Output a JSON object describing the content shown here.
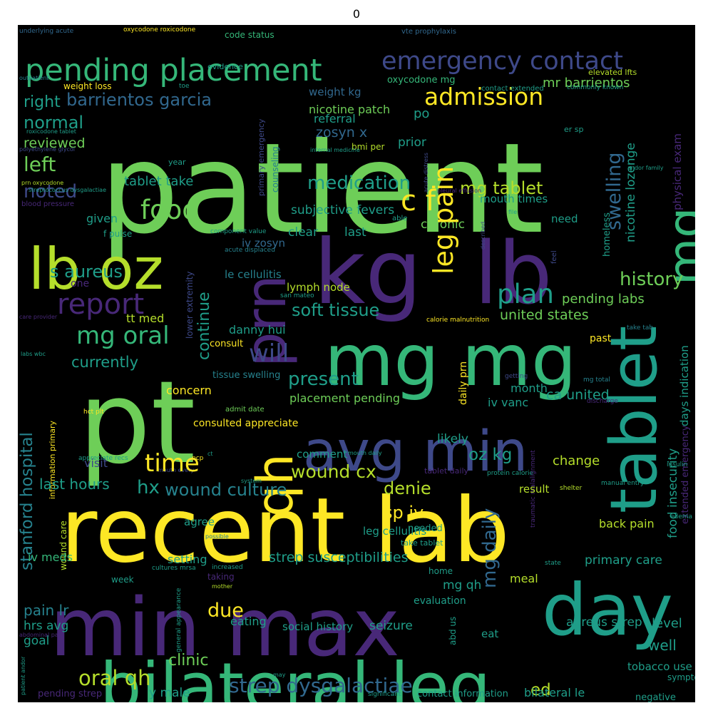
{
  "figure": {
    "title": "0",
    "background": "#000000"
  },
  "colors": {
    "yellow": "#fde725",
    "lime": "#b5de2b",
    "green": "#6ece58",
    "teal_green": "#35b779",
    "teal": "#1f9e89",
    "cyan_blue": "#26828e",
    "blue": "#31688e",
    "indigo": "#3e4989",
    "purple": "#482878"
  },
  "words": [
    {
      "text": "patient",
      "color": "green"
    },
    {
      "text": "pt",
      "color": "green"
    },
    {
      "text": "recent lab",
      "color": "yellow"
    },
    {
      "text": "min max",
      "color": "purple"
    },
    {
      "text": "kg",
      "color": "purple"
    },
    {
      "text": "lb",
      "color": "purple"
    },
    {
      "text": "bilateral leg",
      "color": "teal_green"
    },
    {
      "text": "mg mg",
      "color": "teal_green"
    },
    {
      "text": "day",
      "color": "teal"
    },
    {
      "text": "tablet",
      "color": "teal"
    },
    {
      "text": "lb oz",
      "color": "lime"
    },
    {
      "text": "avg min",
      "color": "indigo"
    },
    {
      "text": "qh",
      "color": "yellow"
    },
    {
      "text": "prn",
      "color": "purple"
    },
    {
      "text": "mg",
      "color": "teal_green"
    },
    {
      "text": "pending placement",
      "color": "teal_green"
    },
    {
      "text": "emergency contact",
      "color": "indigo"
    },
    {
      "text": "admission",
      "color": "yellow"
    },
    {
      "text": "barrientos garcia",
      "color": "blue"
    },
    {
      "text": "mr barrientos",
      "color": "green"
    },
    {
      "text": "weight kg",
      "color": "blue"
    },
    {
      "text": "nicotine patch",
      "color": "green"
    },
    {
      "text": "oxycodone mg",
      "color": "teal_green"
    },
    {
      "text": "code status",
      "color": "teal_green"
    },
    {
      "text": "oxycodone roxicodone",
      "color": "yellow"
    },
    {
      "text": "vte prophylaxis",
      "color": "blue"
    },
    {
      "text": "underlying acute",
      "color": "blue"
    },
    {
      "text": "evidence",
      "color": "teal"
    },
    {
      "text": "outpatient",
      "color": "cyan_blue"
    },
    {
      "text": "weight loss",
      "color": "yellow"
    },
    {
      "text": "toe",
      "color": "teal"
    },
    {
      "text": "elevated lfts",
      "color": "lime"
    },
    {
      "text": "commonly known",
      "color": "teal"
    },
    {
      "text": "contact extended",
      "color": "teal"
    },
    {
      "text": "physical exam",
      "color": "purple"
    },
    {
      "text": "right",
      "color": "teal"
    },
    {
      "text": "normal",
      "color": "teal"
    },
    {
      "text": "left",
      "color": "green"
    },
    {
      "text": "noted",
      "color": "indigo"
    },
    {
      "text": "reviewed",
      "color": "green"
    },
    {
      "text": "roxicodone tablet",
      "color": "teal"
    },
    {
      "text": "polyethylene glycol",
      "color": "indigo"
    },
    {
      "text": "prn oxycodone",
      "color": "lime"
    },
    {
      "text": "streptococcus dysgalactiae",
      "color": "teal"
    },
    {
      "text": "blood pressure",
      "color": "purple"
    },
    {
      "text": "referral",
      "color": "teal"
    },
    {
      "text": "zosyn x",
      "color": "blue"
    },
    {
      "text": "bmi per",
      "color": "lime"
    },
    {
      "text": "internal medicine",
      "color": "teal"
    },
    {
      "text": "prior",
      "color": "teal"
    },
    {
      "text": "po",
      "color": "teal"
    },
    {
      "text": "er sp",
      "color": "teal"
    },
    {
      "text": "year",
      "color": "teal"
    },
    {
      "text": "tablet take",
      "color": "teal"
    },
    {
      "text": "medication",
      "color": "teal"
    },
    {
      "text": "mg tablet",
      "color": "lime"
    },
    {
      "text": "c f",
      "color": "yellow"
    },
    {
      "text": "food",
      "color": "green"
    },
    {
      "text": "swelling",
      "color": "blue"
    },
    {
      "text": "nicotine lozenge",
      "color": "teal"
    },
    {
      "text": "andor family",
      "color": "teal"
    },
    {
      "text": "primary emergency",
      "color": "indigo"
    },
    {
      "text": "counseling",
      "color": "cyan_blue"
    },
    {
      "text": "acute distress",
      "color": "indigo"
    },
    {
      "text": "pleural effusion",
      "color": "purple"
    },
    {
      "text": "subjective fevers",
      "color": "teal"
    },
    {
      "text": "mouth times",
      "color": "teal"
    },
    {
      "text": "homeless",
      "color": "teal"
    },
    {
      "text": "need",
      "color": "teal"
    },
    {
      "text": "chronic",
      "color": "green"
    },
    {
      "text": "able",
      "color": "teal"
    },
    {
      "text": "file",
      "color": "teal"
    },
    {
      "text": "described",
      "color": "indigo"
    },
    {
      "text": "feel",
      "color": "indigo"
    },
    {
      "text": "clear",
      "color": "teal"
    },
    {
      "text": "last",
      "color": "teal"
    },
    {
      "text": "given",
      "color": "teal"
    },
    {
      "text": "f pulse",
      "color": "teal"
    },
    {
      "text": "component value",
      "color": "teal"
    },
    {
      "text": "acute displaced",
      "color": "cyan_blue"
    },
    {
      "text": "iv zosyn",
      "color": "blue"
    },
    {
      "text": "leg pain",
      "color": "yellow"
    },
    {
      "text": "s aureus",
      "color": "teal"
    },
    {
      "text": "one",
      "color": "purple"
    },
    {
      "text": "le cellulitis",
      "color": "cyan_blue"
    },
    {
      "text": "lower extremity",
      "color": "indigo"
    },
    {
      "text": "history",
      "color": "green"
    },
    {
      "text": "report",
      "color": "purple"
    },
    {
      "text": "plan",
      "color": "teal"
    },
    {
      "text": "pending labs",
      "color": "green"
    },
    {
      "text": "lymph node",
      "color": "lime"
    },
    {
      "text": "san mateo",
      "color": "teal"
    },
    {
      "text": "soft tissue",
      "color": "teal"
    },
    {
      "text": "united states",
      "color": "green"
    },
    {
      "text": "calorie malnutrition",
      "color": "yellow"
    },
    {
      "text": "take tab",
      "color": "cyan_blue"
    },
    {
      "text": "care provider",
      "color": "purple"
    },
    {
      "text": "labs wbc",
      "color": "teal"
    },
    {
      "text": "mg oral",
      "color": "teal_green"
    },
    {
      "text": "tt med",
      "color": "lime"
    },
    {
      "text": "continue",
      "color": "teal"
    },
    {
      "text": "danny hui",
      "color": "teal"
    },
    {
      "text": "will",
      "color": "indigo"
    },
    {
      "text": "past",
      "color": "yellow"
    },
    {
      "text": "consult",
      "color": "yellow"
    },
    {
      "text": "currently",
      "color": "teal"
    },
    {
      "text": "present",
      "color": "teal"
    },
    {
      "text": "tissue swelling",
      "color": "cyan_blue"
    },
    {
      "text": "mg total",
      "color": "cyan_blue"
    },
    {
      "text": "getting",
      "color": "indigo"
    },
    {
      "text": "days indication",
      "color": "teal"
    },
    {
      "text": "stanford hospital",
      "color": "cyan_blue"
    },
    {
      "text": "information primary",
      "color": "yellow"
    },
    {
      "text": "concern",
      "color": "yellow"
    },
    {
      "text": "admit date",
      "color": "green"
    },
    {
      "text": "hct plt",
      "color": "yellow"
    },
    {
      "text": "consulted appreciate",
      "color": "yellow"
    },
    {
      "text": "placement pending",
      "color": "green"
    },
    {
      "text": "daily prn",
      "color": "yellow"
    },
    {
      "text": "month",
      "color": "teal"
    },
    {
      "text": "ca united",
      "color": "teal"
    },
    {
      "text": "iv vanc",
      "color": "teal"
    },
    {
      "text": "discharge",
      "color": "purple"
    },
    {
      "text": "food insecurity",
      "color": "teal"
    },
    {
      "text": "extended emergency",
      "color": "purple"
    },
    {
      "text": "appreciate recs",
      "color": "teal"
    },
    {
      "text": "pcp",
      "color": "yellow"
    },
    {
      "text": "ct",
      "color": "teal"
    },
    {
      "text": "mouth every",
      "color": "indigo"
    },
    {
      "text": "likely",
      "color": "teal"
    },
    {
      "text": "oz kg",
      "color": "teal"
    },
    {
      "text": "comment",
      "color": "teal"
    },
    {
      "text": "mouth daily",
      "color": "teal"
    },
    {
      "text": "time",
      "color": "yellow"
    },
    {
      "text": "visit",
      "color": "indigo"
    },
    {
      "text": "change",
      "color": "lime"
    },
    {
      "text": "insulin",
      "color": "teal"
    },
    {
      "text": "shelter",
      "color": "lime"
    },
    {
      "text": "tablet daily",
      "color": "purple"
    },
    {
      "text": "protein calorie",
      "color": "teal"
    },
    {
      "text": "manual entry",
      "color": "teal"
    },
    {
      "text": "traumatic malalignment",
      "color": "purple"
    },
    {
      "text": "last hours",
      "color": "teal"
    },
    {
      "text": "hx",
      "color": "teal"
    },
    {
      "text": "wound cx",
      "color": "lime"
    },
    {
      "text": "wound culture",
      "color": "cyan_blue"
    },
    {
      "text": "denie",
      "color": "lime"
    },
    {
      "text": "result",
      "color": "lime"
    },
    {
      "text": "system",
      "color": "teal"
    },
    {
      "text": "edema",
      "color": "teal"
    },
    {
      "text": "mg daily",
      "color": "blue"
    },
    {
      "text": "sp iv",
      "color": "yellow"
    },
    {
      "text": "needed",
      "color": "teal"
    },
    {
      "text": "take tablet",
      "color": "teal"
    },
    {
      "text": "back pain",
      "color": "lime"
    },
    {
      "text": "agree",
      "color": "teal"
    },
    {
      "text": "possible",
      "color": "cyan_blue"
    },
    {
      "text": "leg cellulitis",
      "color": "teal"
    },
    {
      "text": "wound care",
      "color": "lime"
    },
    {
      "text": "iv meds",
      "color": "teal_green"
    },
    {
      "text": "setting",
      "color": "teal"
    },
    {
      "text": "strep susceptibilities",
      "color": "teal"
    },
    {
      "text": "primary care",
      "color": "teal"
    },
    {
      "text": "week",
      "color": "teal"
    },
    {
      "text": "cultures mrsa",
      "color": "teal"
    },
    {
      "text": "increased",
      "color": "teal"
    },
    {
      "text": "home",
      "color": "teal"
    },
    {
      "text": "meal",
      "color": "lime"
    },
    {
      "text": "state",
      "color": "teal"
    },
    {
      "text": "taking",
      "color": "purple"
    },
    {
      "text": "mother",
      "color": "lime"
    },
    {
      "text": "general appearance",
      "color": "teal"
    },
    {
      "text": "evaluation",
      "color": "teal"
    },
    {
      "text": "mg qh",
      "color": "teal"
    },
    {
      "text": "due",
      "color": "yellow"
    },
    {
      "text": "level",
      "color": "teal"
    },
    {
      "text": "abd us",
      "color": "teal"
    },
    {
      "text": "pain lr",
      "color": "cyan_blue"
    },
    {
      "text": "hrs avg",
      "color": "teal"
    },
    {
      "text": "goal",
      "color": "teal"
    },
    {
      "text": "eating",
      "color": "teal"
    },
    {
      "text": "social history",
      "color": "teal"
    },
    {
      "text": "seizure",
      "color": "teal"
    },
    {
      "text": "aureus strep",
      "color": "teal"
    },
    {
      "text": "eat",
      "color": "teal"
    },
    {
      "text": "well",
      "color": "teal"
    },
    {
      "text": "tobacco use",
      "color": "teal"
    },
    {
      "text": "symptom",
      "color": "teal"
    },
    {
      "text": "abdominal pain",
      "color": "purple"
    },
    {
      "text": "patient andor",
      "color": "teal"
    },
    {
      "text": "clinic",
      "color": "green"
    },
    {
      "text": "oral qh",
      "color": "lime"
    },
    {
      "text": "strep dysgalactiae",
      "color": "blue"
    },
    {
      "text": "y male",
      "color": "teal"
    },
    {
      "text": "may",
      "color": "teal"
    },
    {
      "text": "ed",
      "color": "lime"
    },
    {
      "text": "pending strep",
      "color": "purple"
    },
    {
      "text": "significant",
      "color": "teal"
    },
    {
      "text": "contact information",
      "color": "teal"
    },
    {
      "text": "bilateral le",
      "color": "teal"
    },
    {
      "text": "negative",
      "color": "teal"
    }
  ]
}
